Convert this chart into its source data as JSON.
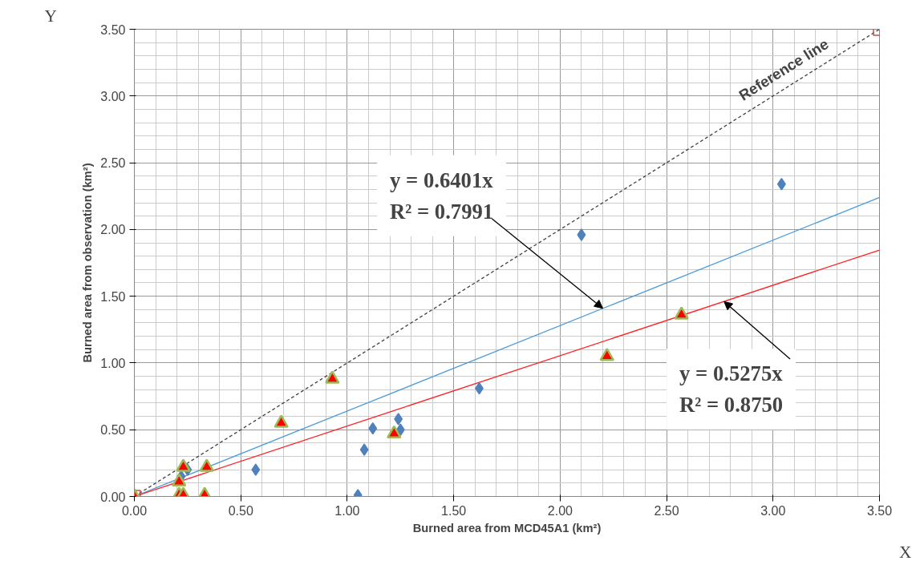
{
  "chart_data": {
    "type": "scatter",
    "xlabel": "Burned area from MCD45A1 (km²)",
    "ylabel": "Burned area from observation (km²)",
    "xlim": [
      0,
      3.5
    ],
    "ylim": [
      0,
      3.5
    ],
    "xticks": [
      {
        "value": 0,
        "label": "0.00"
      },
      {
        "value": 0.5,
        "label": "0.50"
      },
      {
        "value": 1,
        "label": "1.00"
      },
      {
        "value": 1.5,
        "label": "1.50"
      },
      {
        "value": 2,
        "label": "2.00"
      },
      {
        "value": 2.5,
        "label": "2.50"
      },
      {
        "value": 3,
        "label": "3.00"
      },
      {
        "value": 3.5,
        "label": "3.50"
      }
    ],
    "yticks": [
      {
        "value": 0,
        "label": "0.00"
      },
      {
        "value": 0.5,
        "label": "0.50"
      },
      {
        "value": 1,
        "label": "1.00"
      },
      {
        "value": 1.5,
        "label": "1.50"
      },
      {
        "value": 2,
        "label": "2.00"
      },
      {
        "value": 2.5,
        "label": "2.50"
      },
      {
        "value": 3,
        "label": "3.00"
      },
      {
        "value": 3.5,
        "label": "3.50"
      }
    ],
    "grid": true,
    "series": [
      {
        "type": "line",
        "name": "Reference line",
        "color": "#404040",
        "line_style": "dashed",
        "marker": "square",
        "x": [
          0,
          3.5
        ],
        "values": [
          0,
          3.5
        ]
      },
      {
        "type": "line",
        "color": "#4a9bd8",
        "line_style": "solid",
        "marker": "none",
        "x": [
          0,
          3.5
        ],
        "values": [
          0,
          2.24
        ]
      },
      {
        "type": "line",
        "color": "#ff2020",
        "line_style": "solid",
        "marker": "none",
        "x": [
          0,
          3.5
        ],
        "values": [
          0,
          1.846
        ]
      },
      {
        "color": "#4f81bd",
        "marker": "diamond",
        "x": [
          0.25,
          0.22,
          0.57,
          1.05,
          1.08,
          1.12,
          1.24,
          1.25,
          1.62,
          2.1,
          3.04
        ],
        "values": [
          0.2,
          0.15,
          0.2,
          0.01,
          0.35,
          0.51,
          0.58,
          0.5,
          0.81,
          1.96,
          2.34
        ]
      },
      {
        "color": "#ff0000",
        "marker": "triangle",
        "x": [
          0,
          0.21,
          0.23,
          0.34,
          0.69,
          0.93,
          0.21,
          0.23,
          0.33,
          1.22,
          2.22,
          2.57
        ],
        "values": [
          0,
          0.11,
          0.22,
          0.22,
          0.55,
          0.88,
          0.01,
          0.01,
          0.01,
          0.47,
          1.05,
          1.36
        ]
      }
    ],
    "annotations": [
      {
        "text": "y = 0.6401x\nR² = 0.7991",
        "x": 2.2,
        "y": 1.41
      },
      {
        "text": "y = 0.5275x\nR² = 0.8750",
        "x": 2.77,
        "y": 1.46
      },
      "Y",
      "X"
    ]
  }
}
